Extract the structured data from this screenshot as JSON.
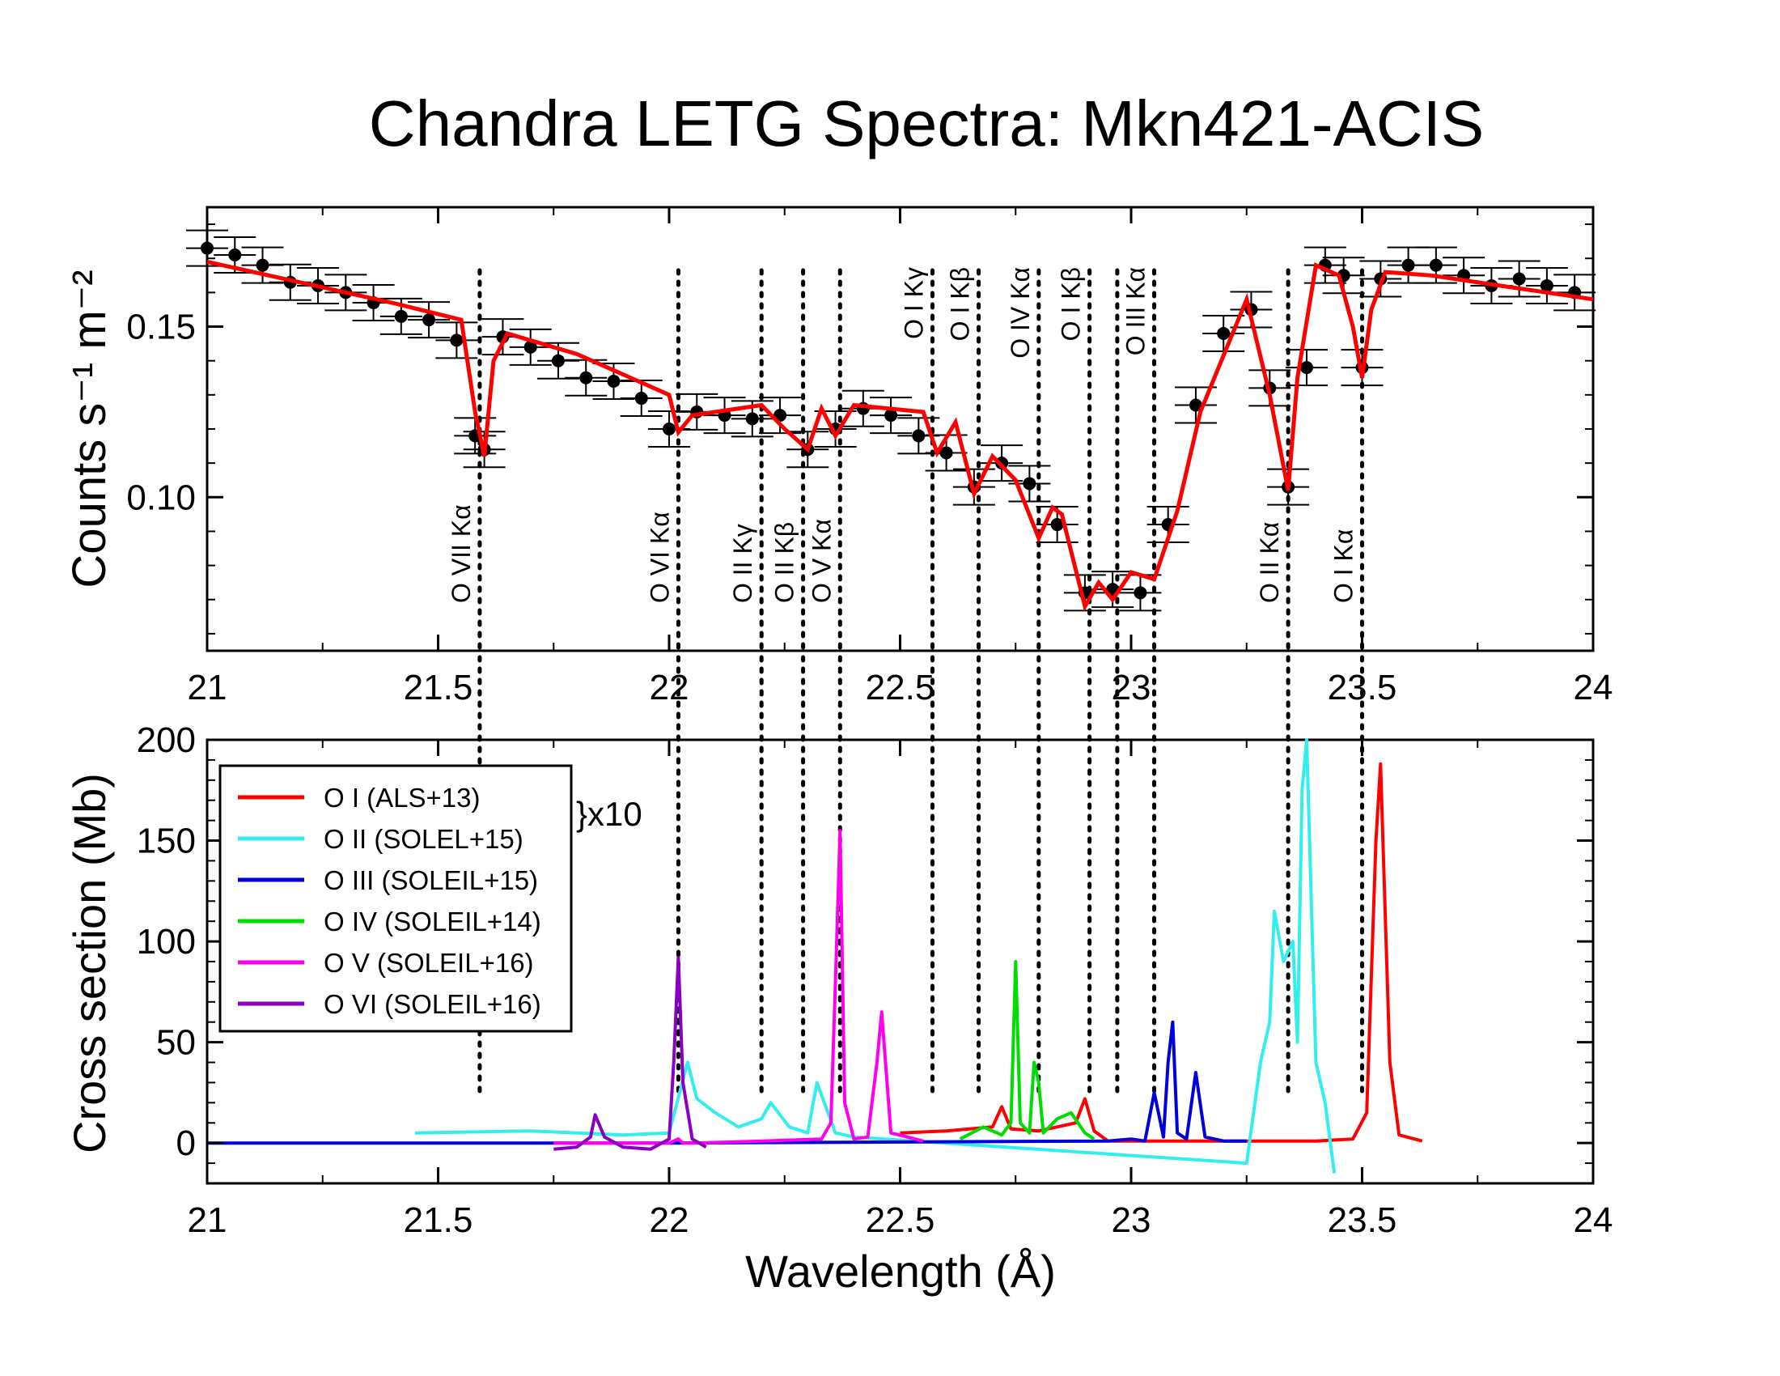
{
  "title": "Chandra LETG Spectra: Mkn421-ACIS",
  "chart_data": [
    {
      "type": "scatter",
      "panel": "top",
      "xlim": [
        21,
        24
      ],
      "ylim": [
        0.055,
        0.185
      ],
      "xticks": [
        21,
        21.5,
        22,
        22.5,
        23,
        23.5,
        24
      ],
      "xtick_labels": [
        "21",
        "21.5",
        "22",
        "22.5",
        "23",
        "23.5",
        "24"
      ],
      "yticks": [
        0.1,
        0.15
      ],
      "ytick_labels": [
        "0.10",
        "0.15"
      ],
      "ylabel": "Counts  s⁻¹  m⁻²",
      "xlabel": "",
      "grid": false,
      "model_color": "#ff0000",
      "model_line": {
        "x": [
          21.0,
          21.2,
          21.4,
          21.55,
          21.58,
          21.6,
          21.62,
          21.65,
          21.8,
          22.0,
          22.02,
          22.05,
          22.2,
          22.25,
          22.3,
          22.33,
          22.36,
          22.4,
          22.55,
          22.58,
          22.62,
          22.66,
          22.7,
          22.75,
          22.8,
          22.83,
          22.85,
          22.9,
          22.93,
          22.96,
          23.0,
          23.05,
          23.1,
          23.15,
          23.25,
          23.3,
          23.34,
          23.36,
          23.4,
          23.45,
          23.48,
          23.5,
          23.52,
          23.55,
          23.65,
          23.8,
          24.0
        ],
        "y": [
          0.169,
          0.163,
          0.157,
          0.152,
          0.125,
          0.112,
          0.14,
          0.148,
          0.142,
          0.13,
          0.119,
          0.124,
          0.127,
          0.12,
          0.114,
          0.126,
          0.118,
          0.127,
          0.125,
          0.113,
          0.122,
          0.101,
          0.112,
          0.105,
          0.088,
          0.097,
          0.095,
          0.068,
          0.075,
          0.07,
          0.078,
          0.076,
          0.096,
          0.125,
          0.158,
          0.13,
          0.102,
          0.135,
          0.168,
          0.165,
          0.15,
          0.135,
          0.155,
          0.166,
          0.165,
          0.162,
          0.158
        ]
      },
      "data_points": {
        "x": [
          21.0,
          21.06,
          21.12,
          21.18,
          21.24,
          21.3,
          21.36,
          21.42,
          21.48,
          21.54,
          21.58,
          21.6,
          21.64,
          21.7,
          21.76,
          21.82,
          21.88,
          21.94,
          22.0,
          22.06,
          22.12,
          22.18,
          22.24,
          22.3,
          22.36,
          22.42,
          22.48,
          22.54,
          22.6,
          22.66,
          22.72,
          22.78,
          22.84,
          22.9,
          22.96,
          23.02,
          23.08,
          23.14,
          23.2,
          23.26,
          23.3,
          23.34,
          23.38,
          23.42,
          23.46,
          23.5,
          23.54,
          23.6,
          23.66,
          23.72,
          23.78,
          23.84,
          23.9,
          23.96
        ],
        "y": [
          0.173,
          0.171,
          0.168,
          0.163,
          0.162,
          0.16,
          0.157,
          0.153,
          0.152,
          0.146,
          0.118,
          0.114,
          0.147,
          0.144,
          0.14,
          0.135,
          0.134,
          0.129,
          0.12,
          0.125,
          0.124,
          0.123,
          0.124,
          0.114,
          0.12,
          0.126,
          0.124,
          0.118,
          0.113,
          0.103,
          0.11,
          0.104,
          0.092,
          0.072,
          0.073,
          0.072,
          0.092,
          0.127,
          0.148,
          0.155,
          0.132,
          0.103,
          0.138,
          0.168,
          0.165,
          0.138,
          0.164,
          0.168,
          0.168,
          0.165,
          0.162,
          0.164,
          0.162,
          0.16
        ]
      },
      "line_markers": [
        {
          "x": 21.59,
          "label": "O VII Kα",
          "label_side": "below"
        },
        {
          "x": 22.02,
          "label": "O VI Kα",
          "label_side": "below"
        },
        {
          "x": 22.2,
          "label": "O II Kγ",
          "label_side": "below"
        },
        {
          "x": 22.29,
          "label": "O II Kβ",
          "label_side": "below"
        },
        {
          "x": 22.37,
          "label": "O V Kα",
          "label_side": "below"
        },
        {
          "x": 22.57,
          "label": "O I Kγ",
          "label_side": "above"
        },
        {
          "x": 22.67,
          "label": "O I Kβ",
          "label_side": "above"
        },
        {
          "x": 22.8,
          "label": "O IV Kα",
          "label_side": "above"
        },
        {
          "x": 22.91,
          "label": "O I Kβ",
          "label_side": "above"
        },
        {
          "x": 22.97,
          "label": "",
          "label_side": "above"
        },
        {
          "x": 23.05,
          "label": "O III Kα",
          "label_side": "above"
        },
        {
          "x": 23.34,
          "label": "O II Kα",
          "label_side": "below"
        },
        {
          "x": 23.5,
          "label": "O I Kα",
          "label_side": "below"
        }
      ]
    },
    {
      "type": "line",
      "panel": "bottom",
      "xlim": [
        21,
        24
      ],
      "ylim": [
        -20,
        200
      ],
      "xticks": [
        21,
        21.5,
        22,
        22.5,
        23,
        23.5,
        24
      ],
      "xtick_labels": [
        "21",
        "21.5",
        "22",
        "22.5",
        "23",
        "23.5",
        "24"
      ],
      "yticks": [
        0,
        50,
        100,
        150,
        200
      ],
      "ytick_labels": [
        "0",
        "50",
        "100",
        "150",
        "200"
      ],
      "xlabel": "Wavelength (Å)",
      "ylabel": "Cross section (Mb)",
      "grid": false,
      "legend_position": "top-left",
      "annotation": "}x10",
      "series": [
        {
          "name": "O I (ALS+13)",
          "color": "#ff0000",
          "x": [
            22.5,
            22.6,
            22.7,
            22.72,
            22.74,
            22.8,
            22.88,
            22.9,
            22.92,
            22.95,
            23.0,
            23.2,
            23.4,
            23.48,
            23.51,
            23.53,
            23.54,
            23.56,
            23.58,
            23.63
          ],
          "y": [
            5,
            6,
            8,
            18,
            7,
            6,
            10,
            22,
            6,
            1,
            1,
            1,
            1,
            2,
            15,
            150,
            188,
            40,
            4,
            1
          ]
        },
        {
          "name": "O II (SOLEL+15)",
          "color": "#33eeee",
          "x": [
            21.45,
            21.7,
            21.9,
            22.0,
            22.04,
            22.06,
            22.1,
            22.15,
            22.2,
            22.22,
            22.26,
            22.3,
            22.32,
            22.36,
            22.4,
            23.25,
            23.28,
            23.3,
            23.31,
            23.33,
            23.35,
            23.36,
            23.37,
            23.38,
            23.4,
            23.42,
            23.44
          ],
          "y": [
            5,
            6,
            4,
            5,
            40,
            22,
            15,
            8,
            12,
            20,
            8,
            5,
            30,
            5,
            3,
            -10,
            40,
            60,
            115,
            90,
            100,
            50,
            175,
            200,
            40,
            20,
            -15
          ]
        },
        {
          "name": "O III (SOLEIL+15)",
          "color": "#0000dd",
          "x": [
            21.0,
            21.5,
            22.0,
            22.95,
            23.0,
            23.03,
            23.05,
            23.07,
            23.08,
            23.09,
            23.1,
            23.12,
            23.14,
            23.16,
            23.2,
            23.25
          ],
          "y": [
            0,
            0,
            0,
            1,
            2,
            1,
            25,
            3,
            40,
            60,
            5,
            2,
            35,
            3,
            1,
            1
          ]
        },
        {
          "name": "O IV (SOLEIL+14)",
          "color": "#00dd00",
          "x": [
            22.63,
            22.68,
            22.72,
            22.74,
            22.75,
            22.76,
            22.78,
            22.79,
            22.8,
            22.81,
            22.84,
            22.87,
            22.9,
            22.92
          ],
          "y": [
            2,
            8,
            4,
            10,
            90,
            10,
            5,
            40,
            30,
            5,
            12,
            15,
            5,
            2
          ]
        },
        {
          "name": "O V (SOLEIL+16)",
          "color": "#ff00ee",
          "x": [
            21.75,
            21.9,
            22.0,
            22.02,
            22.03,
            22.06,
            22.2,
            22.33,
            22.35,
            22.36,
            22.37,
            22.38,
            22.4,
            22.43,
            22.45,
            22.46,
            22.48,
            22.55
          ],
          "y": [
            0,
            0,
            0,
            2,
            0,
            0,
            1,
            2,
            10,
            80,
            155,
            20,
            2,
            3,
            40,
            65,
            5,
            1
          ]
        },
        {
          "name": "O VI (SOLEIL+16)",
          "color": "#8a00c0",
          "x": [
            21.75,
            21.8,
            21.83,
            21.84,
            21.86,
            21.9,
            21.96,
            22.0,
            22.01,
            22.02,
            22.03,
            22.05,
            22.08
          ],
          "y": [
            -3,
            -2,
            3,
            14,
            3,
            -2,
            -3,
            2,
            40,
            92,
            30,
            2,
            -2
          ]
        }
      ]
    }
  ]
}
